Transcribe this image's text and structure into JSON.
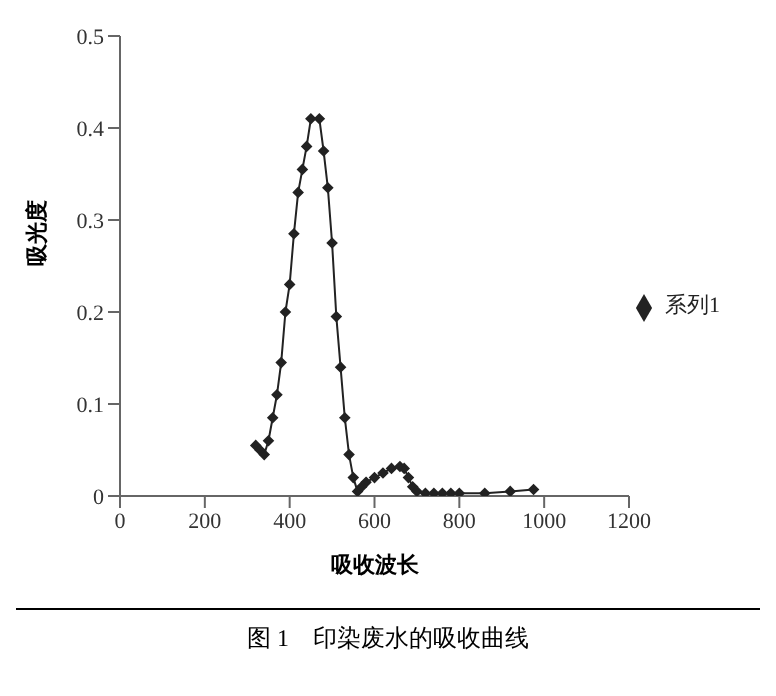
{
  "chart_data": {
    "type": "line",
    "xlabel": "吸收波长",
    "ylabel": "吸光度",
    "annotations": [
      "图 1    印染废水的吸收曲线"
    ],
    "x": [
      320,
      330,
      340,
      350,
      360,
      370,
      380,
      390,
      400,
      410,
      420,
      430,
      440,
      450,
      470,
      480,
      490,
      500,
      510,
      520,
      530,
      540,
      550,
      560,
      570,
      580,
      600,
      620,
      640,
      660,
      670,
      680,
      690,
      700,
      720,
      740,
      760,
      780,
      800,
      860,
      920,
      975
    ],
    "series": [
      {
        "name": "系列1",
        "color": "#222222",
        "values": [
          0.055,
          0.05,
          0.045,
          0.06,
          0.085,
          0.11,
          0.145,
          0.2,
          0.23,
          0.285,
          0.33,
          0.355,
          0.38,
          0.41,
          0.41,
          0.375,
          0.335,
          0.275,
          0.195,
          0.14,
          0.085,
          0.045,
          0.02,
          0.005,
          0.01,
          0.015,
          0.02,
          0.025,
          0.03,
          0.032,
          0.03,
          0.02,
          0.01,
          0.005,
          0.003,
          0.003,
          0.003,
          0.003,
          0.003,
          0.003,
          0.005,
          0.007
        ]
      }
    ],
    "xlim": [
      0,
      1200
    ],
    "xticks": [
      0,
      200,
      400,
      600,
      800,
      1000,
      1200
    ],
    "ylim": [
      0,
      0.5
    ],
    "yticks": [
      0,
      0.1,
      0.2,
      0.3,
      0.4,
      0.5
    ],
    "marker": "diamond",
    "legend": "right"
  }
}
